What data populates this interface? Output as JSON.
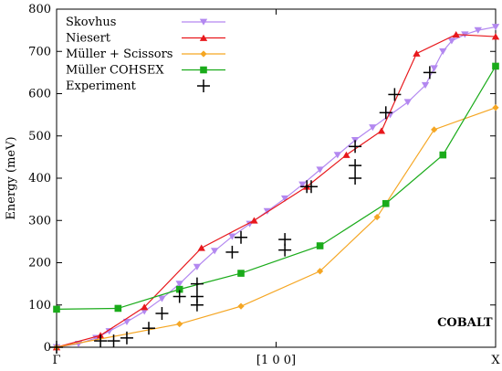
{
  "chart_data": {
    "type": "line",
    "title": "",
    "xlabel": "",
    "ylabel": "Energy (meV)",
    "xlim": [
      0,
      1
    ],
    "ylim": [
      0,
      800
    ],
    "y_ticks": [
      0,
      100,
      200,
      300,
      400,
      500,
      600,
      700,
      800
    ],
    "x_tick_labels": [
      {
        "x": 0.0,
        "label": "Γ"
      },
      {
        "x": 0.5,
        "label": "[1 0 0]"
      },
      {
        "x": 1.0,
        "label": "X"
      }
    ],
    "grid": false,
    "legend_position": "top-left",
    "annotation": "COBALT",
    "series": [
      {
        "name": "Skovhus",
        "style": "line+marker",
        "marker": "triangle-down",
        "color": "#b388f0",
        "points": [
          [
            0.0,
            0
          ],
          [
            0.05,
            8
          ],
          [
            0.09,
            22
          ],
          [
            0.12,
            38
          ],
          [
            0.16,
            60
          ],
          [
            0.2,
            85
          ],
          [
            0.24,
            115
          ],
          [
            0.28,
            150
          ],
          [
            0.32,
            190
          ],
          [
            0.36,
            228
          ],
          [
            0.4,
            262
          ],
          [
            0.44,
            292
          ],
          [
            0.48,
            322
          ],
          [
            0.52,
            352
          ],
          [
            0.56,
            385
          ],
          [
            0.6,
            420
          ],
          [
            0.64,
            455
          ],
          [
            0.68,
            490
          ],
          [
            0.72,
            520
          ],
          [
            0.76,
            550
          ],
          [
            0.8,
            580
          ],
          [
            0.84,
            620
          ],
          [
            0.86,
            660
          ],
          [
            0.88,
            700
          ],
          [
            0.9,
            725
          ],
          [
            0.93,
            740
          ],
          [
            0.96,
            750
          ],
          [
            1.0,
            758
          ]
        ]
      },
      {
        "name": "Niesert",
        "style": "line+marker",
        "marker": "triangle-up",
        "color": "#e8181c",
        "points": [
          [
            0.0,
            0
          ],
          [
            0.1,
            28
          ],
          [
            0.2,
            95
          ],
          [
            0.33,
            235
          ],
          [
            0.45,
            300
          ],
          [
            0.57,
            380
          ],
          [
            0.66,
            455
          ],
          [
            0.74,
            512
          ],
          [
            0.82,
            695
          ],
          [
            0.91,
            740
          ],
          [
            1.0,
            735
          ]
        ]
      },
      {
        "name": "Müller + Scissors",
        "style": "line+marker",
        "marker": "diamond",
        "color": "#f5a623",
        "points": [
          [
            0.0,
            0
          ],
          [
            0.28,
            55
          ],
          [
            0.42,
            97
          ],
          [
            0.6,
            180
          ],
          [
            0.73,
            308
          ],
          [
            0.86,
            515
          ],
          [
            1.0,
            567
          ]
        ]
      },
      {
        "name": "Müller COHSEX",
        "style": "line+marker",
        "marker": "square",
        "color": "#1aab1a",
        "points": [
          [
            0.0,
            90
          ],
          [
            0.14,
            92
          ],
          [
            0.28,
            137
          ],
          [
            0.42,
            175
          ],
          [
            0.6,
            240
          ],
          [
            0.75,
            340
          ],
          [
            0.88,
            455
          ],
          [
            1.0,
            665
          ]
        ]
      },
      {
        "name": "Experiment",
        "style": "marker",
        "marker": "cross",
        "color": "#000000",
        "points": [
          [
            0.0,
            0
          ],
          [
            0.1,
            15
          ],
          [
            0.13,
            15
          ],
          [
            0.16,
            22
          ],
          [
            0.21,
            45
          ],
          [
            0.24,
            80
          ],
          [
            0.28,
            120
          ],
          [
            0.32,
            100
          ],
          [
            0.32,
            120
          ],
          [
            0.32,
            150
          ],
          [
            0.4,
            225
          ],
          [
            0.42,
            260
          ],
          [
            0.52,
            230
          ],
          [
            0.52,
            255
          ],
          [
            0.57,
            380
          ],
          [
            0.58,
            380
          ],
          [
            0.68,
            400
          ],
          [
            0.68,
            430
          ],
          [
            0.68,
            475
          ],
          [
            0.75,
            555
          ],
          [
            0.77,
            598
          ],
          [
            0.85,
            650
          ]
        ]
      }
    ]
  }
}
